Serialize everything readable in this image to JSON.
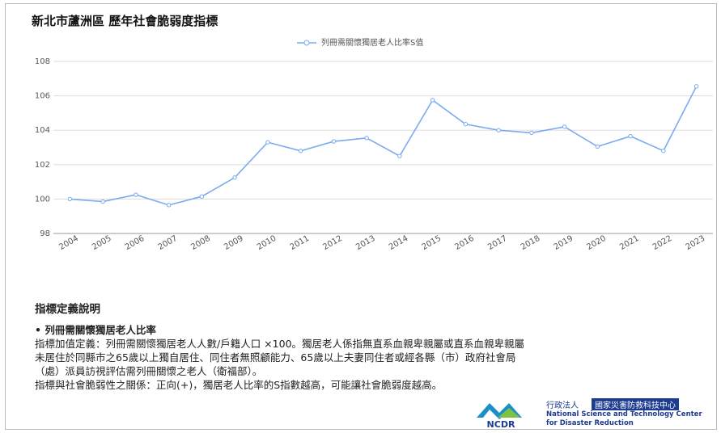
{
  "chart_data": {
    "type": "line",
    "title": "新北市蘆洲區 歷年社會脆弱度指標",
    "categories": [
      "2004",
      "2005",
      "2006",
      "2007",
      "2008",
      "2009",
      "2010",
      "2011",
      "2012",
      "2013",
      "2014",
      "2015",
      "2016",
      "2017",
      "2018",
      "2019",
      "2020",
      "2021",
      "2022",
      "2023"
    ],
    "series": [
      {
        "name": "列冊需關懷獨居老人比率S值",
        "color": "#7aaaf0",
        "values": [
          100.0,
          99.85,
          100.25,
          99.65,
          100.15,
          101.25,
          103.3,
          102.8,
          103.35,
          103.55,
          102.5,
          105.75,
          104.35,
          104.0,
          103.85,
          104.2,
          103.05,
          103.65,
          102.8,
          106.55
        ]
      }
    ],
    "ylim": [
      98,
      108
    ],
    "yticks": [
      98,
      100,
      102,
      104,
      106,
      108
    ],
    "grid": true,
    "legend": "top"
  },
  "definition": {
    "heading": "指標定義說明",
    "item": "列冊需關懷獨居老人比率",
    "lines": [
      "指標加值定義：列冊需關懷獨居老人人數/戶籍人口 ×100。獨居老人係指無直系血親卑親屬或直系血親卑親屬",
      "未居住於同縣市之65歲以上獨自居住、同住者無照顧能力、65歲以上夫妻同住者或經各縣（市）政府社會局",
      "（處）派員訪視評估需列冊關懷之老人（衛福部）。",
      "指標與社會脆弱性之關係：正向(+)，獨居老人比率的S指數越高，可能讓社會脆弱度越高。"
    ]
  },
  "logo": {
    "mark": "NCDR",
    "org_type": "行政法人",
    "org_name": "國家災害防救科技中心",
    "en_line1": "National Science and Technology Center",
    "en_line2": "for Disaster Reduction"
  }
}
